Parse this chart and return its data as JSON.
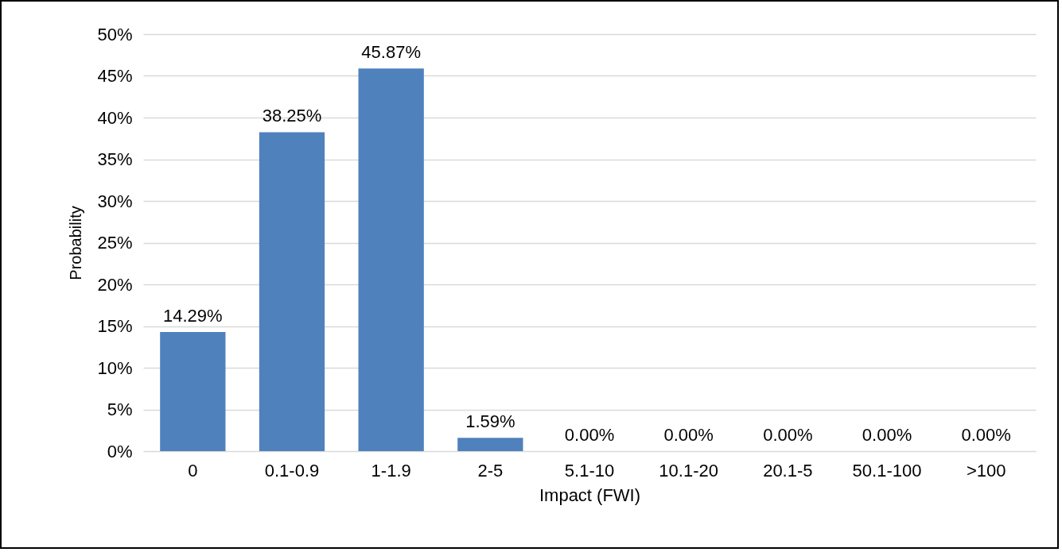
{
  "chart_data": {
    "type": "bar",
    "xlabel": "Impact (FWI)",
    "ylabel": "Probability",
    "categories": [
      "0",
      "0.1-0.9",
      "1-1.9",
      "2-5",
      "5.1-10",
      "10.1-20",
      "20.1-5",
      "50.1-100",
      ">100"
    ],
    "values": [
      14.29,
      38.25,
      45.87,
      1.59,
      0,
      0,
      0,
      0,
      0
    ],
    "value_labels": [
      "14.29%",
      "38.25%",
      "45.87%",
      "1.59%",
      "0.00%",
      "0.00%",
      "0.00%",
      "0.00%",
      "0.00%"
    ],
    "color": "#4f81bd",
    "ylim": [
      0,
      50
    ],
    "yticks": [
      {
        "value": 0,
        "label": "0%"
      },
      {
        "value": 5,
        "label": "5%"
      },
      {
        "value": 10,
        "label": "10%"
      },
      {
        "value": 15,
        "label": "15%"
      },
      {
        "value": 20,
        "label": "20%"
      },
      {
        "value": 25,
        "label": "25%"
      },
      {
        "value": 30,
        "label": "30%"
      },
      {
        "value": 35,
        "label": "35%"
      },
      {
        "value": 40,
        "label": "40%"
      },
      {
        "value": 45,
        "label": "45%"
      },
      {
        "value": 50,
        "label": "50%"
      }
    ],
    "grid": "y"
  }
}
